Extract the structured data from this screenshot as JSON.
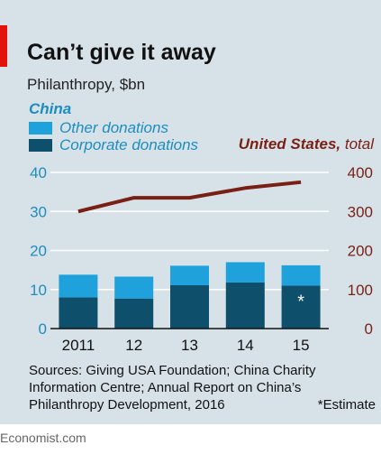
{
  "header": {
    "title": "Can’t give it away",
    "subtitle": "Philanthropy, $bn"
  },
  "legend": {
    "china_label": "China",
    "other": "Other donations",
    "corporate": "Corporate donations",
    "us_label_bold": "United States,",
    "us_label_rest": " total"
  },
  "chart_data": {
    "type": "bar",
    "categories": [
      "2011",
      "12",
      "13",
      "14",
      "15"
    ],
    "series": [
      {
        "name": "Corporate donations",
        "values": [
          8.0,
          7.7,
          11.1,
          11.8,
          11.0
        ]
      },
      {
        "name": "Other donations",
        "values": [
          5.8,
          5.6,
          5.0,
          5.2,
          5.2
        ]
      },
      {
        "name": "United States, total",
        "type": "line",
        "axis": "right",
        "values": [
          300,
          335,
          335,
          360,
          375
        ]
      }
    ],
    "stacked": true,
    "left_axis": {
      "ticks": [
        "0",
        "10",
        "20",
        "30",
        "40"
      ],
      "ylim": [
        0,
        40
      ]
    },
    "right_axis": {
      "ticks": [
        "0",
        "100",
        "200",
        "300",
        "400"
      ],
      "ylim": [
        0,
        400
      ]
    },
    "annotation": {
      "category": "15",
      "text": "*"
    },
    "grid": "horizontal",
    "colors": {
      "corporate": "#0e4f6b",
      "other": "#1fa1dc",
      "us_line": "#7a1f14",
      "left_axis_text": "#1d8dc0",
      "right_axis_text": "#7a1f14",
      "grid": "#ffffff"
    }
  },
  "footer": {
    "sources": "Sources: Giving USA Foundation; China Charity Information Centre; Annual Report on China’s Philanthropy Development, 2016",
    "note": "*Estimate",
    "credit": "Economist.com"
  }
}
